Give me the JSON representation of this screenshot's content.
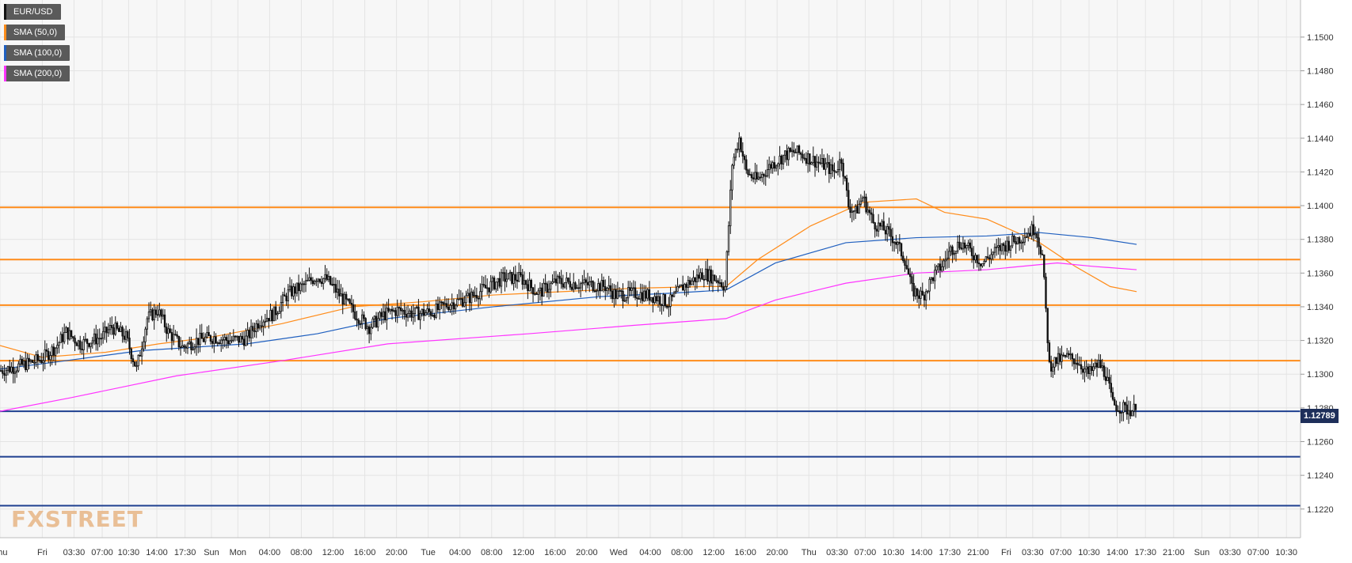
{
  "legend": {
    "items": [
      {
        "label": "EUR/USD",
        "color": "#111111"
      },
      {
        "label": "SMA (50,0)",
        "color": "#ff8c1a"
      },
      {
        "label": "SMA (100,0)",
        "color": "#1f5fbf"
      },
      {
        "label": "SMA (200,0)",
        "color": "#ff33ff"
      }
    ]
  },
  "watermark": {
    "text": "FXSTREET"
  },
  "price_badge": {
    "value": "1.12789"
  },
  "chart_data": {
    "type": "candlestick",
    "title": "",
    "ylim": [
      1.1203,
      1.1522
    ],
    "y_ticks": [
      "1.1220",
      "1.1240",
      "1.1260",
      "1.1280",
      "1.1300",
      "1.1320",
      "1.1340",
      "1.1360",
      "1.1380",
      "1.1400",
      "1.1420",
      "1.1440",
      "1.1460",
      "1.1480",
      "1.1500"
    ],
    "x_ticks": [
      {
        "label": "Thu",
        "i": 0
      },
      {
        "label": "Fri",
        "i": 24
      },
      {
        "label": "03:30",
        "i": 42
      },
      {
        "label": "07:00",
        "i": 58
      },
      {
        "label": "10:30",
        "i": 73
      },
      {
        "label": "14:00",
        "i": 89
      },
      {
        "label": "17:30",
        "i": 105
      },
      {
        "label": "Sun",
        "i": 120
      },
      {
        "label": "Mon",
        "i": 135
      },
      {
        "label": "04:00",
        "i": 153
      },
      {
        "label": "08:00",
        "i": 171
      },
      {
        "label": "12:00",
        "i": 189
      },
      {
        "label": "16:00",
        "i": 207
      },
      {
        "label": "20:00",
        "i": 225
      },
      {
        "label": "Tue",
        "i": 243
      },
      {
        "label": "04:00",
        "i": 261
      },
      {
        "label": "08:00",
        "i": 279
      },
      {
        "label": "12:00",
        "i": 297
      },
      {
        "label": "16:00",
        "i": 315
      },
      {
        "label": "20:00",
        "i": 333
      },
      {
        "label": "Wed",
        "i": 351
      },
      {
        "label": "04:00",
        "i": 369
      },
      {
        "label": "08:00",
        "i": 387
      },
      {
        "label": "12:00",
        "i": 405
      },
      {
        "label": "16:00",
        "i": 423
      },
      {
        "label": "20:00",
        "i": 441
      },
      {
        "label": "Thu",
        "i": 459
      },
      {
        "label": "03:30",
        "i": 475
      },
      {
        "label": "07:00",
        "i": 491
      },
      {
        "label": "10:30",
        "i": 507
      },
      {
        "label": "14:00",
        "i": 523
      },
      {
        "label": "17:30",
        "i": 539
      },
      {
        "label": "21:00",
        "i": 555
      },
      {
        "label": "Fri",
        "i": 571
      },
      {
        "label": "03:30",
        "i": 586
      },
      {
        "label": "07:00",
        "i": 602
      },
      {
        "label": "10:30",
        "i": 618
      },
      {
        "label": "14:00",
        "i": 634
      },
      {
        "label": "17:30",
        "i": 650
      },
      {
        "label": "21:00",
        "i": 666
      },
      {
        "label": "Sun",
        "i": 682
      },
      {
        "label": "03:30",
        "i": 698
      },
      {
        "label": "07:00",
        "i": 714
      },
      {
        "label": "10:30",
        "i": 730
      }
    ],
    "x_count": 738,
    "candle_count": 645,
    "last_price": 1.12789,
    "horizontal_levels": [
      {
        "value": 1.1399,
        "color": "#ff8c1a"
      },
      {
        "value": 1.1368,
        "color": "#ff8c1a"
      },
      {
        "value": 1.1341,
        "color": "#ff8c1a"
      },
      {
        "value": 1.1308,
        "color": "#ff8c1a"
      },
      {
        "value": 1.1278,
        "color": "#1e3f8f"
      },
      {
        "value": 1.1251,
        "color": "#1e3f8f"
      },
      {
        "value": 1.1222,
        "color": "#1e3f8f"
      }
    ],
    "price_keypoints": [
      [
        0,
        1.1302
      ],
      [
        12,
        1.1305
      ],
      [
        24,
        1.1309
      ],
      [
        32,
        1.1316
      ],
      [
        38,
        1.1325
      ],
      [
        46,
        1.1318
      ],
      [
        58,
        1.1322
      ],
      [
        64,
        1.1328
      ],
      [
        72,
        1.1322
      ],
      [
        78,
        1.1303
      ],
      [
        84,
        1.1333
      ],
      [
        90,
        1.1338
      ],
      [
        96,
        1.1325
      ],
      [
        104,
        1.1316
      ],
      [
        112,
        1.132
      ],
      [
        122,
        1.1322
      ],
      [
        130,
        1.132
      ],
      [
        140,
        1.1321
      ],
      [
        148,
        1.1332
      ],
      [
        156,
        1.1336
      ],
      [
        164,
        1.1348
      ],
      [
        172,
        1.1352
      ],
      [
        180,
        1.1358
      ],
      [
        186,
        1.1356
      ],
      [
        194,
        1.1346
      ],
      [
        202,
        1.1336
      ],
      [
        210,
        1.1328
      ],
      [
        218,
        1.1335
      ],
      [
        226,
        1.1338
      ],
      [
        236,
        1.1336
      ],
      [
        246,
        1.1337
      ],
      [
        256,
        1.1342
      ],
      [
        266,
        1.1345
      ],
      [
        276,
        1.1351
      ],
      [
        286,
        1.1357
      ],
      [
        296,
        1.1357
      ],
      [
        306,
        1.1348
      ],
      [
        316,
        1.1355
      ],
      [
        326,
        1.1354
      ],
      [
        336,
        1.1353
      ],
      [
        344,
        1.1352
      ],
      [
        350,
        1.1347
      ],
      [
        362,
        1.1348
      ],
      [
        372,
        1.1346
      ],
      [
        380,
        1.1342
      ],
      [
        388,
        1.1352
      ],
      [
        394,
        1.1356
      ],
      [
        400,
        1.136
      ],
      [
        408,
        1.1356
      ],
      [
        412,
        1.1352
      ],
      [
        416,
        1.1425
      ],
      [
        420,
        1.144
      ],
      [
        424,
        1.142
      ],
      [
        430,
        1.1415
      ],
      [
        438,
        1.1424
      ],
      [
        446,
        1.143
      ],
      [
        452,
        1.1432
      ],
      [
        460,
        1.1428
      ],
      [
        468,
        1.1424
      ],
      [
        474,
        1.142
      ],
      [
        478,
        1.1428
      ],
      [
        482,
        1.14
      ],
      [
        486,
        1.1396
      ],
      [
        490,
        1.1405
      ],
      [
        496,
        1.139
      ],
      [
        502,
        1.1386
      ],
      [
        508,
        1.138
      ],
      [
        514,
        1.1368
      ],
      [
        518,
        1.135
      ],
      [
        524,
        1.1346
      ],
      [
        530,
        1.1358
      ],
      [
        536,
        1.1366
      ],
      [
        540,
        1.1374
      ],
      [
        546,
        1.1378
      ],
      [
        552,
        1.1372
      ],
      [
        558,
        1.1366
      ],
      [
        564,
        1.1372
      ],
      [
        570,
        1.1376
      ],
      [
        578,
        1.138
      ],
      [
        584,
        1.1384
      ],
      [
        588,
        1.1387
      ],
      [
        592,
        1.137
      ],
      [
        596,
        1.1305
      ],
      [
        600,
        1.1308
      ],
      [
        606,
        1.131
      ],
      [
        612,
        1.1308
      ],
      [
        618,
        1.13
      ],
      [
        624,
        1.1306
      ],
      [
        628,
        1.13
      ],
      [
        632,
        1.1282
      ],
      [
        640,
        1.1279
      ],
      [
        644,
        1.12789
      ]
    ],
    "sma_series": [
      {
        "name": "SMA (50,0)",
        "color": "#ff8c1a",
        "points": [
          [
            0,
            1.1317
          ],
          [
            24,
            1.131
          ],
          [
            60,
            1.1313
          ],
          [
            90,
            1.1318
          ],
          [
            120,
            1.1322
          ],
          [
            160,
            1.133
          ],
          [
            200,
            1.134
          ],
          [
            240,
            1.1343
          ],
          [
            280,
            1.1347
          ],
          [
            320,
            1.1349
          ],
          [
            360,
            1.1351
          ],
          [
            400,
            1.1352
          ],
          [
            412,
            1.1352
          ],
          [
            430,
            1.1368
          ],
          [
            460,
            1.1388
          ],
          [
            490,
            1.1402
          ],
          [
            520,
            1.1404
          ],
          [
            536,
            1.1396
          ],
          [
            560,
            1.1392
          ],
          [
            590,
            1.1378
          ],
          [
            610,
            1.1364
          ],
          [
            630,
            1.1352
          ],
          [
            645,
            1.1349
          ]
        ]
      },
      {
        "name": "SMA (100,0)",
        "color": "#1f5fbf",
        "points": [
          [
            0,
            1.1303
          ],
          [
            30,
            1.1307
          ],
          [
            80,
            1.1314
          ],
          [
            140,
            1.1318
          ],
          [
            180,
            1.1324
          ],
          [
            220,
            1.1333
          ],
          [
            280,
            1.134
          ],
          [
            340,
            1.1346
          ],
          [
            380,
            1.1348
          ],
          [
            412,
            1.135
          ],
          [
            440,
            1.1366
          ],
          [
            480,
            1.1378
          ],
          [
            520,
            1.1381
          ],
          [
            560,
            1.1382
          ],
          [
            590,
            1.1384
          ],
          [
            620,
            1.1381
          ],
          [
            645,
            1.1377
          ]
        ]
      },
      {
        "name": "SMA (200,0)",
        "color": "#ff33ff",
        "points": [
          [
            0,
            1.1278
          ],
          [
            40,
            1.1286
          ],
          [
            100,
            1.1299
          ],
          [
            160,
            1.1308
          ],
          [
            220,
            1.1318
          ],
          [
            300,
            1.1324
          ],
          [
            360,
            1.1329
          ],
          [
            412,
            1.1333
          ],
          [
            440,
            1.1344
          ],
          [
            480,
            1.1354
          ],
          [
            520,
            1.136
          ],
          [
            560,
            1.1362
          ],
          [
            600,
            1.1366
          ],
          [
            620,
            1.1364
          ],
          [
            645,
            1.1362
          ]
        ]
      }
    ],
    "grid": true
  }
}
